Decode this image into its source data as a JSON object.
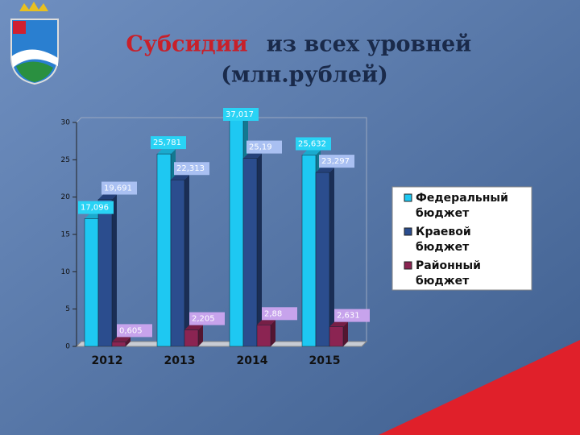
{
  "chart_data": {
    "type": "bar3d",
    "title": [
      "Субсидии",
      "из всех уровней",
      "(млн.рублей)"
    ],
    "categories": [
      "2012",
      "2013",
      "2014",
      "2015"
    ],
    "series": [
      {
        "name": [
          "Федеральный",
          "бюджет"
        ],
        "color": "#1ec8f2",
        "label_bg": "#29d3f5",
        "values": [
          17.096,
          25.781,
          37.017,
          25.632
        ],
        "value_labels": [
          "17,096",
          "25,781",
          "37,017",
          "25,632"
        ]
      },
      {
        "name": [
          "Краевой",
          "бюджет"
        ],
        "color": "#2b4d8e",
        "label_bg": "#a9c0f2",
        "values": [
          19.691,
          22.313,
          25.19,
          23.297
        ],
        "value_labels": [
          "19,691",
          "22,313",
          "25,19",
          "23,297"
        ]
      },
      {
        "name": [
          "Районный",
          "бюджет"
        ],
        "color": "#8b2452",
        "label_bg": "#c7a3ec",
        "values": [
          0.605,
          2.205,
          2.88,
          2.631
        ],
        "value_labels": [
          "0,605",
          "2,205",
          "2,88",
          "2,631"
        ]
      }
    ],
    "ylim": [
      0,
      30
    ],
    "yticks": [
      0,
      5,
      10,
      15,
      20,
      25,
      30
    ],
    "legend": "right"
  }
}
